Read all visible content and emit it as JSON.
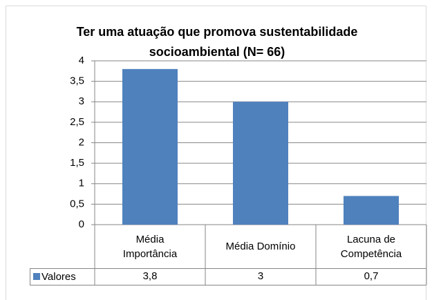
{
  "chart_data": {
    "type": "bar",
    "title": "Ter uma atuação que promova sustentabilidade socioambiental (N= 66)",
    "categories": [
      "Média\nImportância",
      "Média Domínio",
      "Lacuna de\nCompetência"
    ],
    "series": [
      {
        "name": "Valores",
        "color": "#4f81bd",
        "values": [
          3.8,
          3,
          0.7
        ],
        "value_labels": [
          "3,8",
          "3",
          "0,7"
        ]
      }
    ],
    "ylim": [
      0,
      4
    ],
    "yticks": [
      0,
      {
        "value": 0.5,
        "label": "0,5"
      },
      1,
      {
        "value": 1.5,
        "label": "1,5"
      },
      2,
      {
        "value": 2.5,
        "label": "2,5"
      },
      3,
      {
        "value": 3.5,
        "label": "3,5"
      },
      4
    ],
    "grid": true
  }
}
